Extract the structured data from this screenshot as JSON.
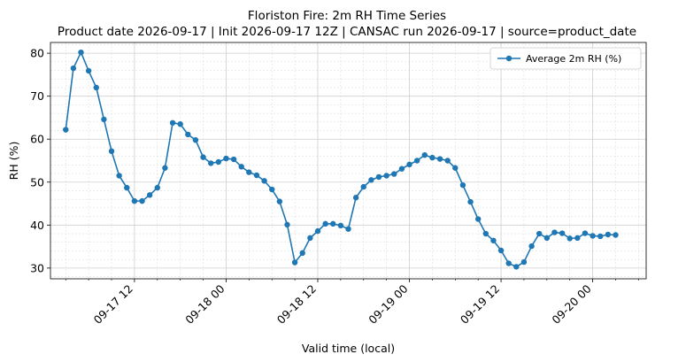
{
  "chart_data": {
    "type": "line",
    "title": "Floriston Fire: 2m RH Time Series",
    "subtitle": "Product date 2026-09-17 | Init 2026-09-17 12Z | CANSAC run 2026-09-17 | source=product_date",
    "xlabel": "Valid time (local)",
    "ylabel": "RH (%)",
    "x_start": "2026-09-17 05:00",
    "x_step_hours": 1,
    "xlim": [
      "2026-09-17 03:00",
      "2026-09-20 09:00"
    ],
    "ylim": [
      27.5,
      82.5
    ],
    "yticks": [
      30,
      40,
      50,
      60,
      70,
      80
    ],
    "xticks": [
      {
        "label": "09-17 12",
        "hours": 9
      },
      {
        "label": "09-18 00",
        "hours": 21
      },
      {
        "label": "09-18 12",
        "hours": 33
      },
      {
        "label": "09-19 00",
        "hours": 45
      },
      {
        "label": "09-19 12",
        "hours": 57
      },
      {
        "label": "09-20 00",
        "hours": 69
      }
    ],
    "grid": true,
    "legend_position": "top-right",
    "color": "#1f77b4",
    "series": [
      {
        "name": "Average 2m RH (%)",
        "values": [
          62.2,
          76.5,
          80.2,
          75.9,
          72.0,
          64.6,
          57.2,
          51.5,
          48.7,
          45.6,
          45.6,
          47.0,
          48.7,
          53.3,
          63.8,
          63.5,
          61.1,
          59.8,
          55.8,
          54.4,
          54.7,
          55.5,
          55.3,
          53.6,
          52.3,
          51.6,
          50.3,
          48.3,
          45.5,
          40.1,
          31.3,
          33.5,
          37.0,
          38.6,
          40.3,
          40.3,
          39.9,
          39.1,
          46.4,
          48.9,
          50.5,
          51.2,
          51.5,
          51.9,
          53.1,
          54.1,
          55.0,
          56.3,
          55.7,
          55.4,
          55.0,
          53.3,
          49.3,
          45.4,
          41.4,
          38.0,
          36.4,
          34.1,
          31.1,
          30.3,
          31.4,
          35.1,
          38.0,
          37.0,
          38.3,
          38.1,
          36.9,
          37.0,
          38.1,
          37.5,
          37.4,
          37.8,
          37.7
        ]
      }
    ]
  }
}
